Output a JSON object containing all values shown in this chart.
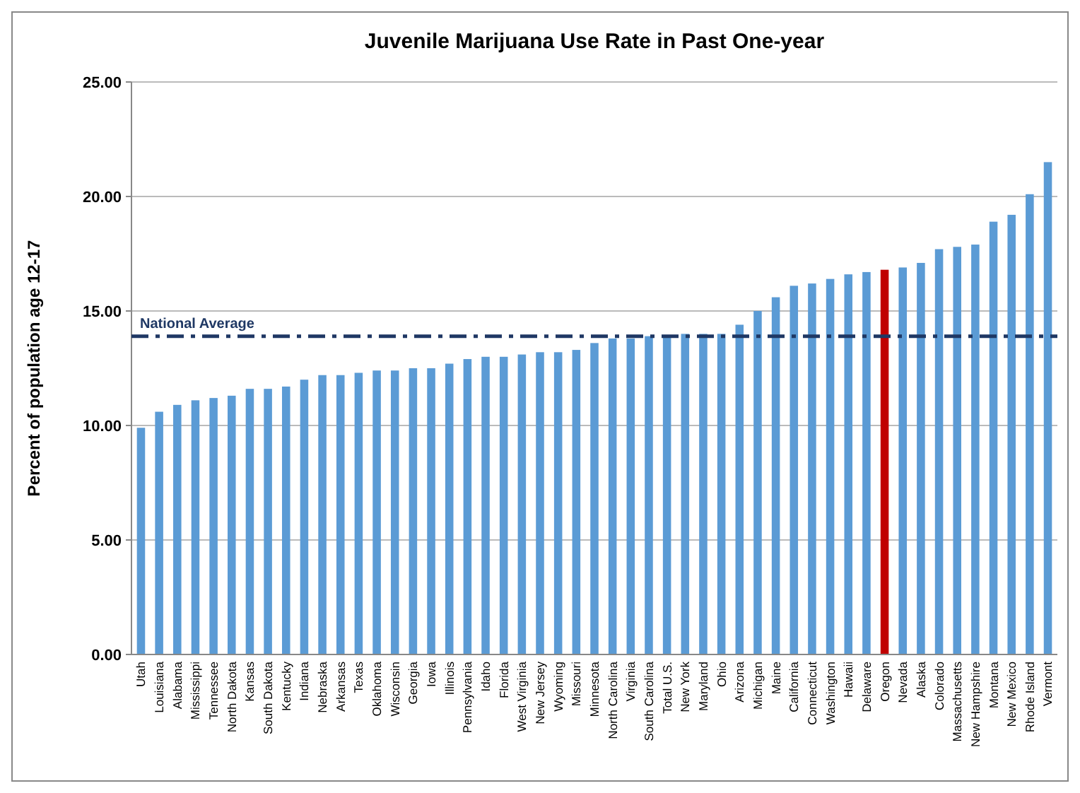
{
  "chart_data": {
    "type": "bar",
    "title": "Juvenile Marijuana Use Rate in Past One-year",
    "ylabel": "Percent of population age 12-17",
    "categories": [
      "Utah",
      "Louisiana",
      "Alabama",
      "Mississippi",
      "Tennessee",
      "North Dakota",
      "Kansas",
      "South Dakota",
      "Kentucky",
      "Indiana",
      "Nebraska",
      "Arkansas",
      "Texas",
      "Oklahoma",
      "Wisconsin",
      "Georgia",
      "Iowa",
      "Illinois",
      "Pennsylvania",
      "Idaho",
      "Florida",
      "West Virginia",
      "New Jersey",
      "Wyoming",
      "Missouri",
      "Minnesota",
      "North Carolina",
      "Virginia",
      "South Carolina",
      "Total U.S.",
      "New York",
      "Maryland",
      "Ohio",
      "Arizona",
      "Michigan",
      "Maine",
      "California",
      "Connecticut",
      "Washington",
      "Hawaii",
      "Delaware",
      "Oregon",
      "Nevada",
      "Alaska",
      "Colorado",
      "Massachusetts",
      "New Hampshire",
      "Montana",
      "New Mexico",
      "Rhode Island",
      "Vermont"
    ],
    "values": [
      9.9,
      10.6,
      10.9,
      11.1,
      11.2,
      11.3,
      11.6,
      11.6,
      11.7,
      12.0,
      12.2,
      12.2,
      12.3,
      12.4,
      12.4,
      12.5,
      12.5,
      12.7,
      12.9,
      13.0,
      13.0,
      13.1,
      13.2,
      13.2,
      13.3,
      13.6,
      13.8,
      13.8,
      13.9,
      13.9,
      14.0,
      14.0,
      14.0,
      14.4,
      15.0,
      15.6,
      16.1,
      16.2,
      16.4,
      16.6,
      16.7,
      16.8,
      16.9,
      17.1,
      17.7,
      17.8,
      17.9,
      18.9,
      19.2,
      20.1,
      21.5
    ],
    "colors": [
      "#5b9bd5",
      "#5b9bd5",
      "#5b9bd5",
      "#5b9bd5",
      "#5b9bd5",
      "#5b9bd5",
      "#5b9bd5",
      "#5b9bd5",
      "#5b9bd5",
      "#5b9bd5",
      "#5b9bd5",
      "#5b9bd5",
      "#5b9bd5",
      "#5b9bd5",
      "#5b9bd5",
      "#5b9bd5",
      "#5b9bd5",
      "#5b9bd5",
      "#5b9bd5",
      "#5b9bd5",
      "#5b9bd5",
      "#5b9bd5",
      "#5b9bd5",
      "#5b9bd5",
      "#5b9bd5",
      "#5b9bd5",
      "#5b9bd5",
      "#5b9bd5",
      "#5b9bd5",
      "#5b9bd5",
      "#5b9bd5",
      "#5b9bd5",
      "#5b9bd5",
      "#5b9bd5",
      "#5b9bd5",
      "#5b9bd5",
      "#5b9bd5",
      "#5b9bd5",
      "#5b9bd5",
      "#5b9bd5",
      "#5b9bd5",
      "#c00000",
      "#5b9bd5",
      "#5b9bd5",
      "#5b9bd5",
      "#5b9bd5",
      "#5b9bd5",
      "#5b9bd5",
      "#5b9bd5",
      "#5b9bd5",
      "#5b9bd5"
    ],
    "ylim": [
      0,
      25
    ],
    "yticks": [
      {
        "value": 0,
        "label": "0.00"
      },
      {
        "value": 5,
        "label": "5.00"
      },
      {
        "value": 10,
        "label": "10.00"
      },
      {
        "value": 15,
        "label": "15.00"
      },
      {
        "value": 20,
        "label": "20.00"
      },
      {
        "value": 25,
        "label": "25.00"
      }
    ],
    "grid": "y",
    "ref_lines": [
      {
        "axis": "y",
        "value": 13.9,
        "label": "National Average",
        "color": "#1f3864",
        "line_style": "dashdot"
      }
    ]
  }
}
